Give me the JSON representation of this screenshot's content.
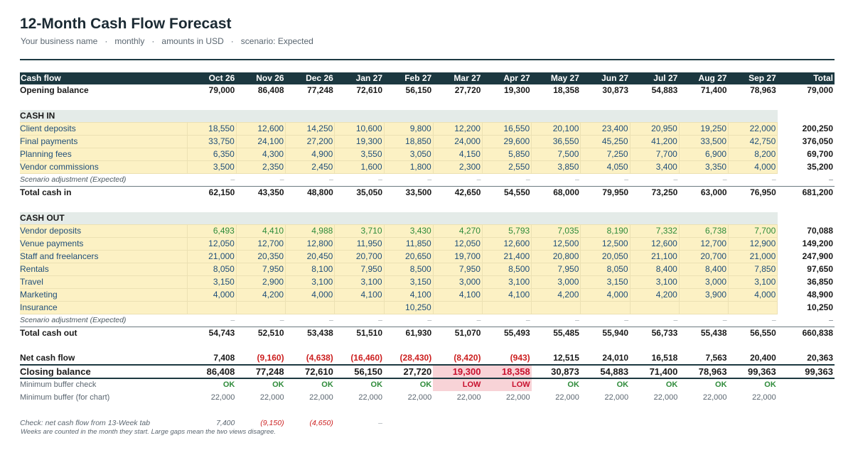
{
  "title": "12-Month Cash Flow Forecast",
  "subtitle": {
    "business": "Your business name",
    "period": "monthly",
    "currency": "amounts in USD",
    "scenario": "scenario: Expected",
    "separator": "·"
  },
  "colors": {
    "header_bg": "#1c3840",
    "input_bg": "#fcf1c4",
    "input_text": "#1f4e79",
    "negative": "#cc1f1f",
    "ok": "#2e8b3a",
    "low_bg": "#f8d3d7"
  },
  "header": {
    "label": "Cash flow",
    "months": [
      "Oct 26",
      "Nov 26",
      "Dec 26",
      "Jan 27",
      "Feb 27",
      "Mar 27",
      "Apr 27",
      "May 27",
      "Jun 27",
      "Jul 27",
      "Aug 27",
      "Sep 27"
    ],
    "total": "Total"
  },
  "opening_balance": {
    "label": "Opening balance",
    "values": [
      "79,000",
      "86,408",
      "77,248",
      "72,610",
      "56,150",
      "27,720",
      "19,300",
      "18,358",
      "30,873",
      "54,883",
      "71,400",
      "78,963"
    ],
    "total": "79,000"
  },
  "cash_in": {
    "section_label": "CASH IN",
    "rows": [
      {
        "label": "Client deposits",
        "values": [
          "18,550",
          "12,600",
          "14,250",
          "10,600",
          "9,800",
          "12,200",
          "16,550",
          "20,100",
          "23,400",
          "20,950",
          "19,250",
          "22,000"
        ],
        "total": "200,250"
      },
      {
        "label": "Final payments",
        "values": [
          "33,750",
          "24,100",
          "27,200",
          "19,300",
          "18,850",
          "24,000",
          "29,600",
          "36,550",
          "45,250",
          "41,200",
          "33,500",
          "42,750"
        ],
        "total": "376,050"
      },
      {
        "label": "Planning fees",
        "values": [
          "6,350",
          "4,300",
          "4,900",
          "3,550",
          "3,050",
          "4,150",
          "5,850",
          "7,500",
          "7,250",
          "7,700",
          "6,900",
          "8,200"
        ],
        "total": "69,700"
      },
      {
        "label": "Vendor commissions",
        "values": [
          "3,500",
          "2,350",
          "2,450",
          "1,600",
          "1,800",
          "2,300",
          "2,550",
          "3,850",
          "4,050",
          "3,400",
          "3,350",
          "4,000"
        ],
        "total": "35,200"
      }
    ],
    "adjustment": {
      "label": "Scenario adjustment (Expected)",
      "values": [
        "–",
        "–",
        "–",
        "–",
        "–",
        "–",
        "–",
        "–",
        "–",
        "–",
        "–",
        "–"
      ],
      "total": "–"
    },
    "total": {
      "label": "Total cash in",
      "values": [
        "62,150",
        "43,350",
        "48,800",
        "35,050",
        "33,500",
        "42,650",
        "54,550",
        "68,000",
        "79,950",
        "73,250",
        "63,000",
        "76,950"
      ],
      "total": "681,200"
    }
  },
  "cash_out": {
    "section_label": "CASH OUT",
    "rows": [
      {
        "label": "Vendor deposits",
        "values": [
          "6,493",
          "4,410",
          "4,988",
          "3,710",
          "3,430",
          "4,270",
          "5,793",
          "7,035",
          "8,190",
          "7,332",
          "6,738",
          "7,700"
        ],
        "total": "70,088"
      },
      {
        "label": "Venue payments",
        "values": [
          "12,050",
          "12,700",
          "12,800",
          "11,950",
          "11,850",
          "12,050",
          "12,600",
          "12,500",
          "12,500",
          "12,600",
          "12,700",
          "12,900"
        ],
        "total": "149,200"
      },
      {
        "label": "Staff and freelancers",
        "values": [
          "21,000",
          "20,350",
          "20,450",
          "20,700",
          "20,650",
          "19,700",
          "21,400",
          "20,800",
          "20,050",
          "21,100",
          "20,700",
          "21,000"
        ],
        "total": "247,900"
      },
      {
        "label": "Rentals",
        "values": [
          "8,050",
          "7,950",
          "8,100",
          "7,950",
          "8,500",
          "7,950",
          "8,500",
          "7,950",
          "8,050",
          "8,400",
          "8,400",
          "7,850"
        ],
        "total": "97,650"
      },
      {
        "label": "Travel",
        "values": [
          "3,150",
          "2,900",
          "3,100",
          "3,100",
          "3,150",
          "3,000",
          "3,100",
          "3,000",
          "3,150",
          "3,100",
          "3,000",
          "3,100"
        ],
        "total": "36,850"
      },
      {
        "label": "Marketing",
        "values": [
          "4,000",
          "4,200",
          "4,000",
          "4,100",
          "4,100",
          "4,100",
          "4,100",
          "4,200",
          "4,000",
          "4,200",
          "3,900",
          "4,000"
        ],
        "total": "48,900"
      },
      {
        "label": "Insurance",
        "values": [
          "",
          "",
          "",
          "",
          "10,250",
          "",
          "",
          "",
          "",
          "",
          "",
          ""
        ],
        "total": "10,250"
      }
    ],
    "adjustment": {
      "label": "Scenario adjustment (Expected)",
      "values": [
        "–",
        "–",
        "–",
        "–",
        "–",
        "–",
        "–",
        "–",
        "–",
        "–",
        "–",
        "–"
      ],
      "total": "–"
    },
    "total": {
      "label": "Total cash out",
      "values": [
        "54,743",
        "52,510",
        "53,438",
        "51,510",
        "61,930",
        "51,070",
        "55,493",
        "55,485",
        "55,940",
        "56,733",
        "55,438",
        "56,550"
      ],
      "total": "660,838"
    }
  },
  "net_cash_flow": {
    "label": "Net cash flow",
    "values": [
      "7,408",
      "(9,160)",
      "(4,638)",
      "(16,460)",
      "(28,430)",
      "(8,420)",
      "(943)",
      "12,515",
      "24,010",
      "16,518",
      "7,563",
      "20,400"
    ],
    "negative": [
      false,
      true,
      true,
      true,
      true,
      true,
      true,
      false,
      false,
      false,
      false,
      false
    ],
    "total": "20,363"
  },
  "closing_balance": {
    "label": "Closing balance",
    "values": [
      "86,408",
      "77,248",
      "72,610",
      "56,150",
      "27,720",
      "19,300",
      "18,358",
      "30,873",
      "54,883",
      "71,400",
      "78,963",
      "99,363"
    ],
    "low": [
      false,
      false,
      false,
      false,
      false,
      true,
      true,
      false,
      false,
      false,
      false,
      false
    ],
    "total": "99,363"
  },
  "buffer_check": {
    "label": "Minimum buffer check",
    "values": [
      "OK",
      "OK",
      "OK",
      "OK",
      "OK",
      "LOW",
      "LOW",
      "OK",
      "OK",
      "OK",
      "OK",
      "OK"
    ]
  },
  "buffer_chart": {
    "label": "Minimum buffer (for chart)",
    "values": [
      "22,000",
      "22,000",
      "22,000",
      "22,000",
      "22,000",
      "22,000",
      "22,000",
      "22,000",
      "22,000",
      "22,000",
      "22,000",
      "22,000"
    ]
  },
  "check_13week": {
    "label": "Check: net cash flow from 13-Week tab",
    "values": [
      "7,400",
      "(9,150)",
      "(4,650)",
      "–",
      "",
      "",
      "",
      "",
      "",
      "",
      "",
      ""
    ],
    "negative": [
      false,
      true,
      true,
      false,
      false,
      false,
      false,
      false,
      false,
      false,
      false,
      false
    ]
  },
  "footnote": "Weeks are counted in the month they start. Large gaps mean the two views disagree."
}
